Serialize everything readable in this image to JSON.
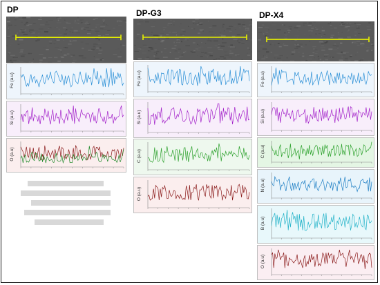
{
  "columns": [
    {
      "title": "DP",
      "panels": [
        {
          "label": "Fe (a.u)",
          "color": "#2a8fd6",
          "bg": "#eef5fc"
        },
        {
          "label": "Si (a.u)",
          "color": "#a21fc9",
          "bg": "#f8eefb"
        },
        {
          "label": "O (a.u)",
          "color": "#8a1a1a",
          "bg": "#fbeeee",
          "secondary_color": "#1f8a2a"
        }
      ]
    },
    {
      "title": "DP-G3",
      "panels": [
        {
          "label": "Fe (a.u)",
          "color": "#2a8fd6",
          "bg": "#eef5fc"
        },
        {
          "label": "Si (a.u)",
          "color": "#a21fc9",
          "bg": "#f8eefb"
        },
        {
          "label": "C (a.u)",
          "color": "#2aa02a",
          "bg": "#eef8ee"
        },
        {
          "label": "O (a.u)",
          "color": "#8a1a1a",
          "bg": "#fbeeee"
        }
      ]
    },
    {
      "title": "DP-X4",
      "panels": [
        {
          "label": "Fe (a.u)",
          "color": "#2a8fd6",
          "bg": "#eef5fc"
        },
        {
          "label": "Si (a.u)",
          "color": "#a21fc9",
          "bg": "#f8eefb"
        },
        {
          "label": "C (a.u)",
          "color": "#2aa02a",
          "bg": "#e4f6e4"
        },
        {
          "label": "N (a.u)",
          "color": "#1f7fc4",
          "bg": "#e8f4fb"
        },
        {
          "label": "B (a.u)",
          "color": "#21b2c8",
          "bg": "#e8f8fb"
        },
        {
          "label": "O (a.u)",
          "color": "#8a1a1a",
          "bg": "#fbeef2"
        }
      ]
    }
  ],
  "scan_line_color": "#e6f000"
}
